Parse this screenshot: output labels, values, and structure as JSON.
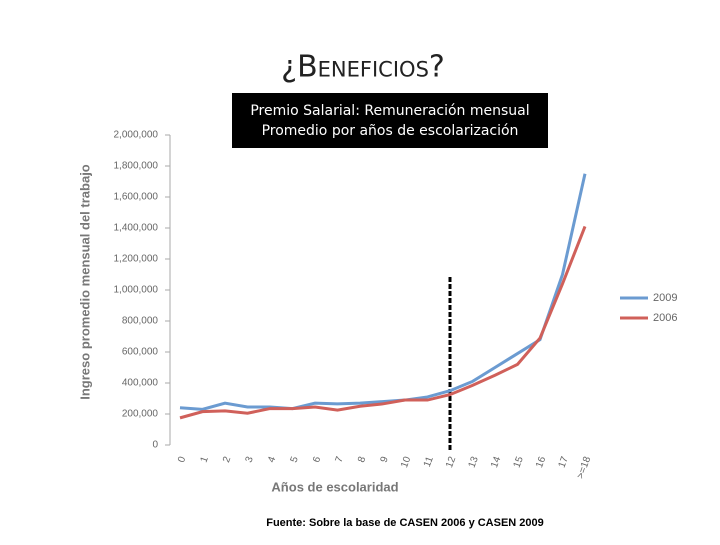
{
  "chart_data": {
    "type": "line",
    "title": "¿Beneficios?",
    "subtitle_lines": [
      "Premio Salarial:  Remuneración mensual",
      "Promedio por años de escolarización"
    ],
    "source": "Fuente: Sobre la base de CASEN 2006 y CASEN 2009",
    "x_label": "Años de escolaridad",
    "y_label": "Ingreso promedio mensual del trabajo",
    "categories": [
      "0",
      "1",
      "2",
      "3",
      "4",
      "5",
      "6",
      "7",
      "8",
      "9",
      "10",
      "11",
      "12",
      "13",
      "14",
      "15",
      "16",
      "17",
      ">=18"
    ],
    "series": [
      {
        "name": "2009",
        "color": "#6b9bd1",
        "values": [
          240000,
          230000,
          270000,
          245000,
          245000,
          235000,
          270000,
          265000,
          270000,
          280000,
          290000,
          310000,
          350000,
          410000,
          500000,
          590000,
          680000,
          1100000,
          1750000
        ]
      },
      {
        "name": "2006",
        "color": "#d0605a",
        "values": [
          175000,
          215000,
          220000,
          205000,
          235000,
          235000,
          245000,
          225000,
          250000,
          265000,
          290000,
          290000,
          325000,
          385000,
          450000,
          520000,
          690000,
          1040000,
          1410000
        ]
      }
    ],
    "ylim": [
      0,
      2000000
    ],
    "yticks": [
      0,
      {
        "value": 200000,
        "label": "200,000"
      },
      {
        "value": 400000,
        "label": "400,000"
      },
      {
        "value": 600000,
        "label": "600,000"
      },
      {
        "value": 800000,
        "label": "800,000"
      },
      {
        "value": 1000000,
        "label": "1,000,000"
      },
      {
        "value": 1200000,
        "label": "1,200,000"
      },
      {
        "value": 1400000,
        "label": "1,400,000"
      },
      {
        "value": 1600000,
        "label": "1,600,000"
      },
      {
        "value": 1800000,
        "label": "1,800,000"
      },
      {
        "value": 2000000,
        "label": "2,000,000"
      }
    ],
    "grid": false,
    "legend": "right"
  }
}
